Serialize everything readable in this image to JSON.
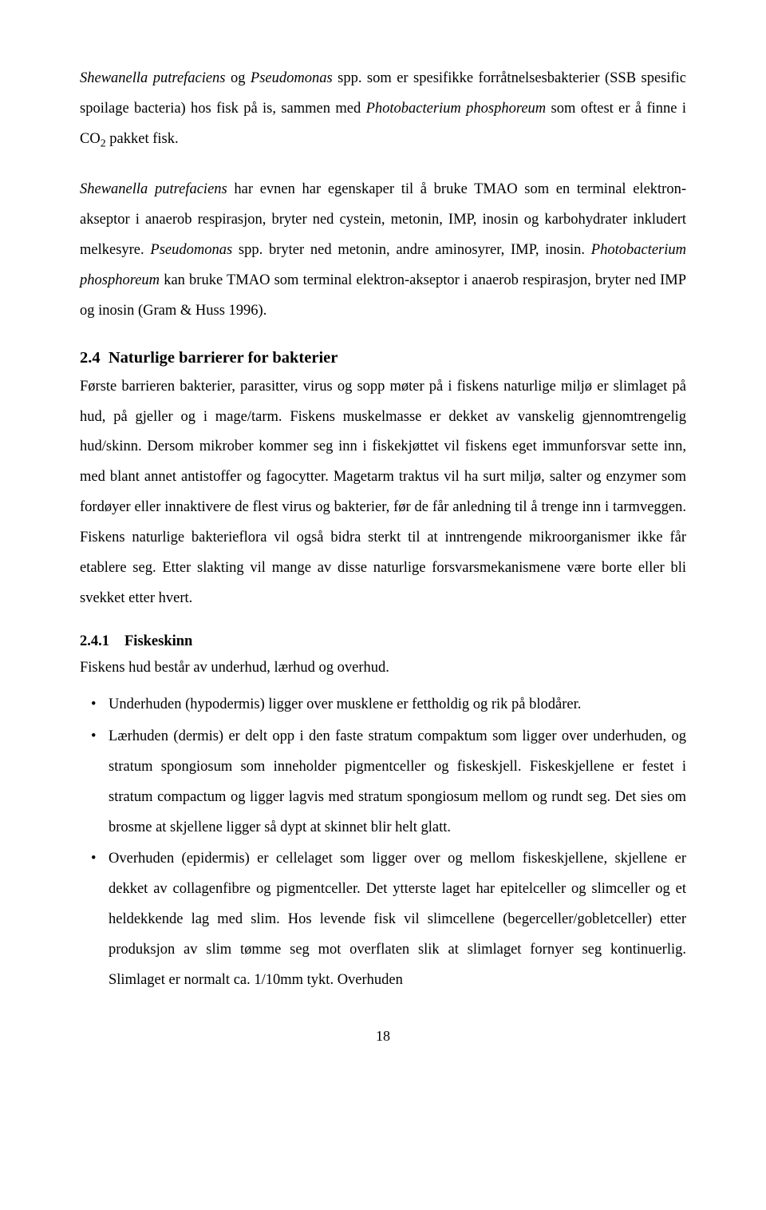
{
  "para1_runs": [
    {
      "text": "Shewanella putrefaciens",
      "italic": true
    },
    {
      "text": " og "
    },
    {
      "text": "Pseudomonas",
      "italic": true
    },
    {
      "text": " spp. som er spesifikke forråtnelsesbakterier (SSB spesific spoilage bacteria) hos fisk på is, sammen med "
    },
    {
      "text": "Photobacterium phosphoreum",
      "italic": true
    },
    {
      "text": " som oftest er å finne i CO"
    },
    {
      "text": "2",
      "sub": true
    },
    {
      "text": " pakket fisk."
    }
  ],
  "para2_runs": [
    {
      "text": "Shewanella putrefaciens",
      "italic": true
    },
    {
      "text": " har evnen har egenskaper til å bruke TMAO som en terminal elektron-akseptor i anaerob respirasjon, bryter ned cystein, metonin, IMP, inosin og karbohydrater inkludert melkesyre. "
    },
    {
      "text": "Pseudomonas",
      "italic": true
    },
    {
      "text": " spp. bryter ned metonin, andre aminosyrer, IMP, inosin. "
    },
    {
      "text": "Photobacterium phosphoreum",
      "italic": true
    },
    {
      "text": " kan bruke TMAO som terminal elektron-akseptor i anaerob respirasjon, bryter ned IMP og inosin (Gram & Huss 1996)."
    }
  ],
  "section24": {
    "num": "2.4",
    "title": "Naturlige barrierer for bakterier"
  },
  "para3": "Første barrieren bakterier, parasitter, virus og sopp møter på i fiskens naturlige miljø er slimlaget på hud, på gjeller og i mage/tarm. Fiskens muskelmasse er dekket av vanskelig gjennomtrengelig hud/skinn. Dersom mikrober kommer seg inn i fiskekjøttet vil fiskens eget immunforsvar sette inn, med blant annet antistoffer og fagocytter. Magetarm traktus vil ha surt miljø, salter og enzymer som fordøyer eller innaktivere de flest virus og bakterier, før de får anledning til å trenge inn i tarmveggen. Fiskens naturlige bakterieflora vil også bidra sterkt til at inntrengende mikroorganismer ikke får etablere seg. Etter slakting vil mange av disse naturlige forsvarsmekanismene være borte eller bli svekket etter hvert.",
  "section241": {
    "num": "2.4.1",
    "title": "Fiskeskinn"
  },
  "para4": "Fiskens hud består av underhud, lærhud og overhud.",
  "bullets": [
    "Underhuden (hypodermis) ligger over musklene er fettholdig og rik på blodårer.",
    "Lærhuden (dermis) er delt opp i den faste stratum compaktum som ligger over underhuden, og stratum spongiosum som inneholder pigmentceller og fiskeskjell. Fiskeskjellene er festet i stratum compactum og ligger lagvis med stratum spongiosum mellom og rundt seg. Det sies om brosme at skjellene ligger så dypt at skinnet blir helt glatt.",
    "Overhuden (epidermis) er cellelaget som ligger over og mellom fiskeskjellene, skjellene er dekket av collagenfibre og pigmentceller. Det ytterste laget har epitelceller og slimceller og et heldekkende lag med slim. Hos levende fisk vil slimcellene (begerceller/gobletceller) etter produksjon av slim tømme seg mot overflaten slik at slimlaget fornyer seg kontinuerlig. Slimlaget er normalt ca. 1/10mm tykt. Overhuden"
  ],
  "pagenum": "18"
}
